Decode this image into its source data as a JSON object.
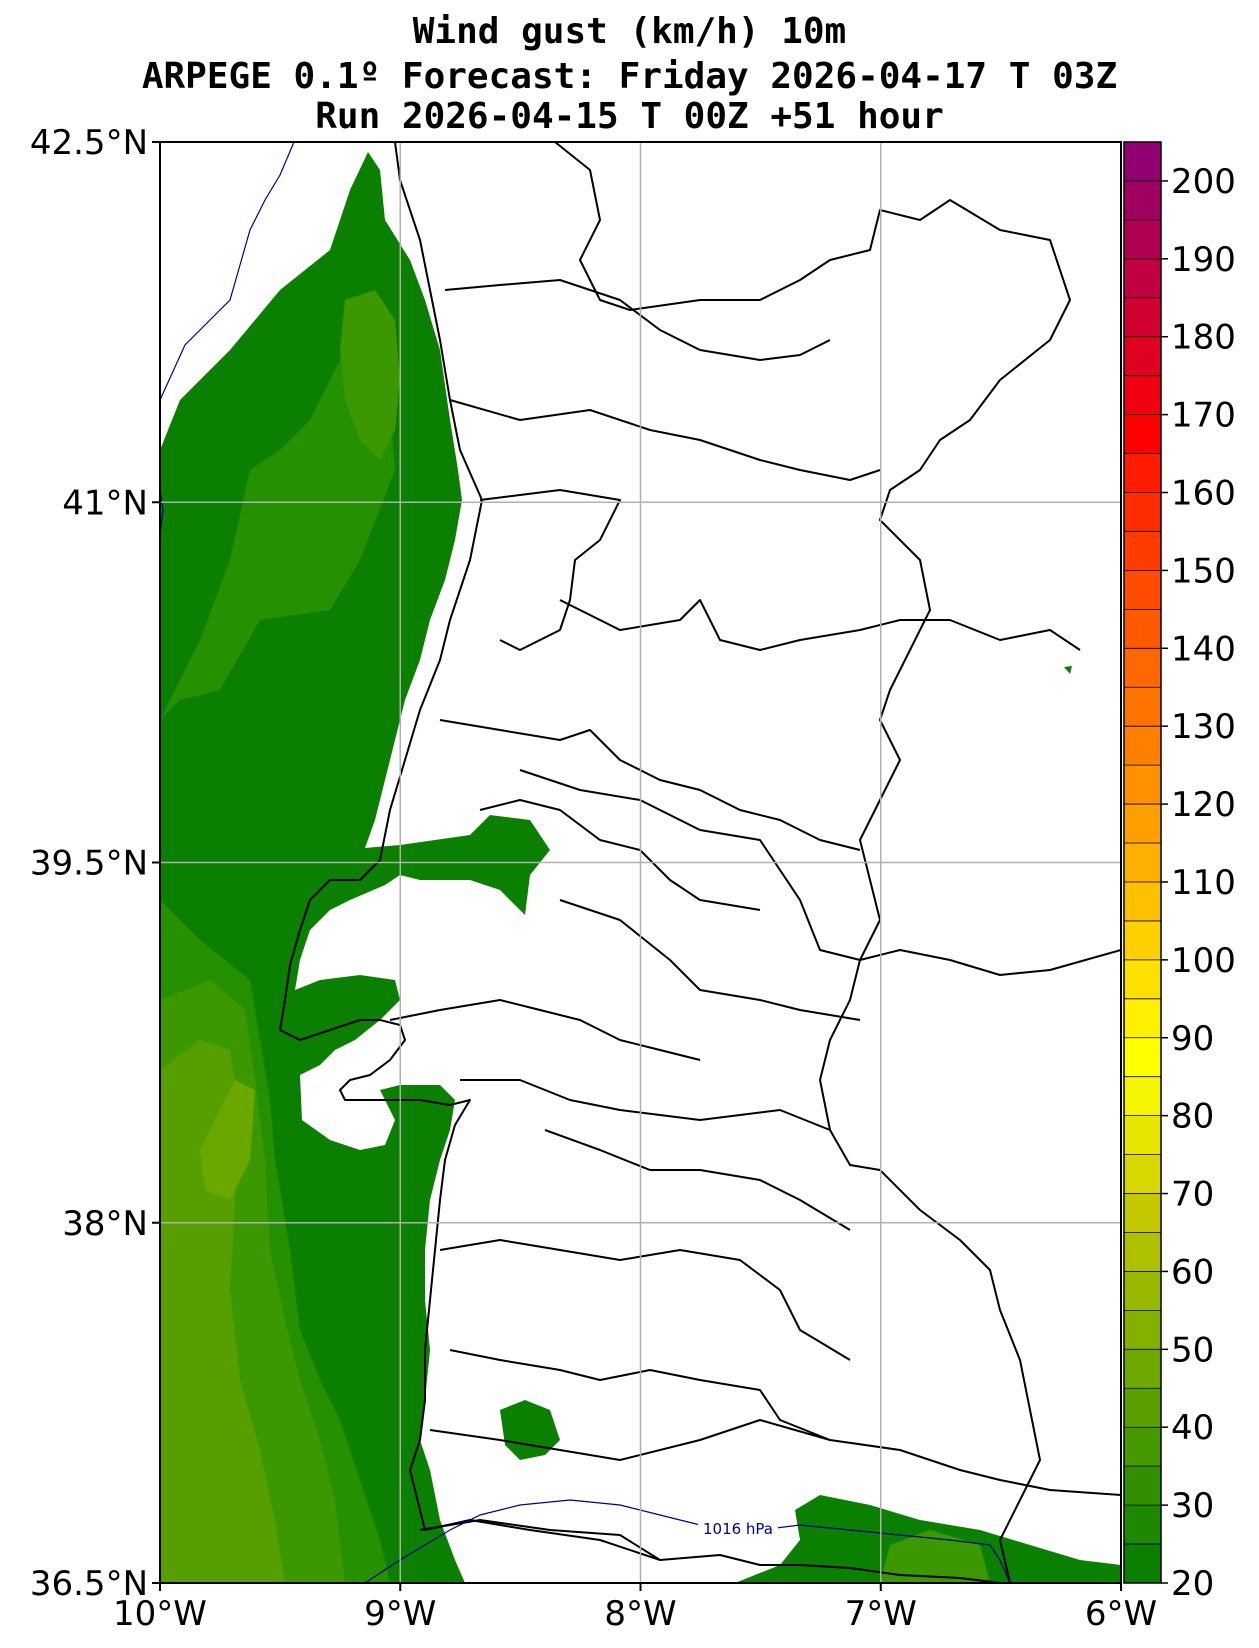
{
  "title": {
    "line1": "Wind gust (km/h) 10m",
    "line2": "ARPEGE 0.1º Forecast: Friday 2026-04-17 T 03Z",
    "line3": "Run 2026-04-15 T 00Z +51 hour"
  },
  "axes": {
    "lat_labels": [
      "42.5°N",
      "41°N",
      "39.5°N",
      "38°N",
      "36.5°N"
    ],
    "lon_labels": [
      "10°W",
      "9°W",
      "8°W",
      "7°W",
      "6°W"
    ],
    "lat_range": [
      36.5,
      42.5
    ],
    "lon_range": [
      -10,
      -6
    ],
    "grid": true
  },
  "isobar_label": "1016 hPa",
  "colorbar": {
    "labels": [
      "20",
      "30",
      "40",
      "50",
      "60",
      "70",
      "80",
      "90",
      "100",
      "110",
      "120",
      "130",
      "140",
      "150",
      "160",
      "170",
      "180",
      "190",
      "200"
    ],
    "min": 20,
    "max": 205,
    "step": 5,
    "colors": [
      "#0a7f00",
      "#1e8800",
      "#329000",
      "#469800",
      "#5aa000",
      "#6fa800",
      "#84b000",
      "#99b800",
      "#aec000",
      "#c3c800",
      "#d8d800",
      "#e6e600",
      "#f5f500",
      "#ffff00",
      "#fff000",
      "#ffe000",
      "#ffd000",
      "#ffc000",
      "#ffb000",
      "#ffa000",
      "#ff9000",
      "#ff8000",
      "#ff7400",
      "#ff6800",
      "#ff5a00",
      "#ff4c00",
      "#ff3c00",
      "#ff2c00",
      "#ff1c00",
      "#ff0000",
      "#f00010",
      "#e00020",
      "#d00030",
      "#c00040",
      "#b00050",
      "#a00060",
      "#900070"
    ]
  },
  "colors": {
    "land_border": "#000000",
    "isobar": "#00008b",
    "grid": "#b0b0b0"
  }
}
